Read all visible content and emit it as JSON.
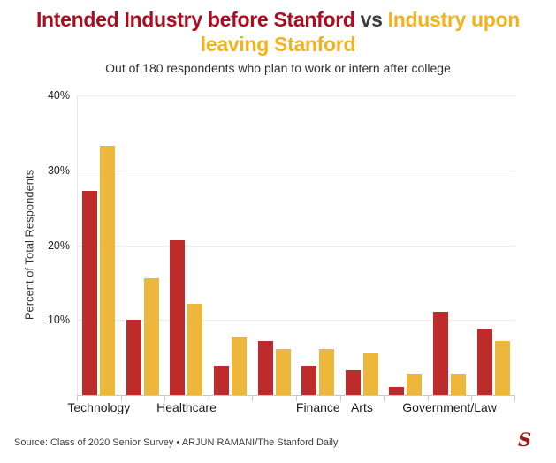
{
  "title": {
    "red_text": "Intended Industry before Stanford",
    "vs_text": "vs",
    "gold_line1": "Industry upon",
    "gold_line2": "leaving Stanford"
  },
  "subtitle": "Out of 180 respondents who plan to work or intern after college",
  "footer": {
    "source": "Source: Class of 2020 Senior Survey • ARJUN RAMANI/The Stanford Daily",
    "logo_glyph": "S"
  },
  "colors": {
    "title-red": "#ad0c1e",
    "title-gold": "#f0b31e",
    "title-gray": "#3c3c3c",
    "bar-red": "#bd2b2b",
    "bar-gold": "#ecb73b",
    "logo-red": "#9a1b1b"
  },
  "chart_data": {
    "type": "bar",
    "title": "Intended Industry before Stanford vs Industry upon leaving Stanford",
    "subtitle": "Out of 180 respondents who plan to work or intern after college",
    "ylabel": "Percent of Total Respondents",
    "xlabel": "",
    "ylim": [
      0,
      40
    ],
    "yticks": [
      10,
      20,
      30,
      40
    ],
    "ytick_suffix": "%",
    "grid": true,
    "legend": "none (series distinguished by title colors)",
    "categories": [
      "Technology",
      "",
      "Healthcare",
      "",
      "",
      "Finance",
      "Arts",
      "",
      "Government/Law",
      ""
    ],
    "series": [
      {
        "name": "Intended Industry before Stanford",
        "color": "#bd2b2b",
        "values": [
          27.2,
          10.0,
          20.6,
          3.9,
          7.2,
          3.9,
          3.3,
          1.1,
          11.1,
          8.9
        ]
      },
      {
        "name": "Industry upon leaving Stanford",
        "color": "#ecb73b",
        "values": [
          33.3,
          15.6,
          12.2,
          7.8,
          6.1,
          6.1,
          5.6,
          2.8,
          2.8,
          7.2
        ]
      }
    ],
    "source": "Source: Class of 2020 Senior Survey • ARJUN RAMANI/The Stanford Daily"
  }
}
